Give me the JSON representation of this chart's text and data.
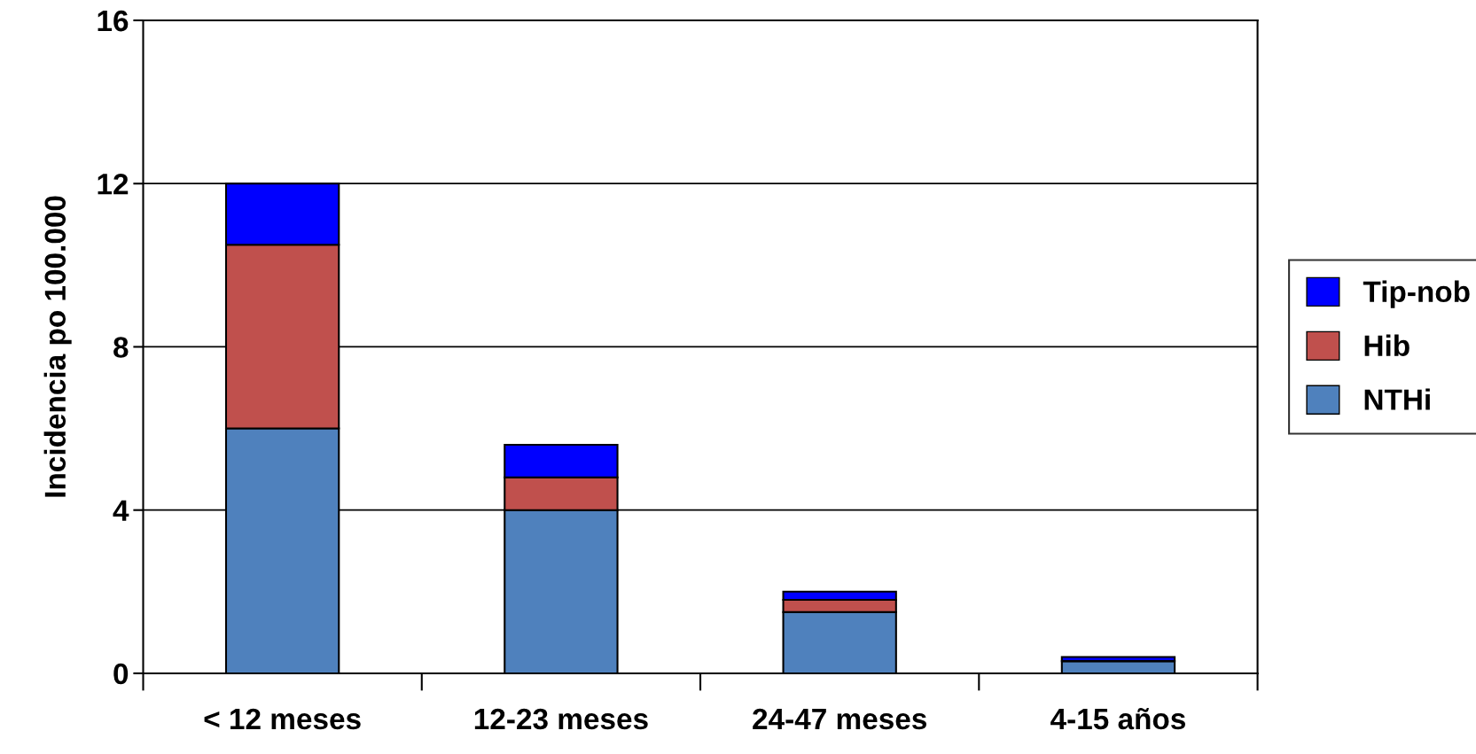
{
  "chart_data": {
    "type": "bar",
    "stacked": true,
    "ylabel": "Incidencia po 100.000",
    "categories": [
      "< 12 meses",
      "12-23 meses",
      "24-47 meses",
      "4-15 años"
    ],
    "series": [
      {
        "name": "NTHi",
        "color": "#4f81bd",
        "values": [
          6,
          4,
          1.5,
          0.3
        ]
      },
      {
        "name": "Hib",
        "color": "#c0504d",
        "values": [
          4.5,
          0.8,
          0.3,
          0
        ]
      },
      {
        "name": "Tip-nob",
        "color": "#0000ff",
        "values": [
          1.5,
          0.8,
          0.2,
          0.1
        ]
      }
    ],
    "ylim": [
      0,
      16
    ],
    "yticks": [
      0,
      4,
      8,
      12,
      16
    ],
    "grid": "y",
    "legend": "right"
  }
}
